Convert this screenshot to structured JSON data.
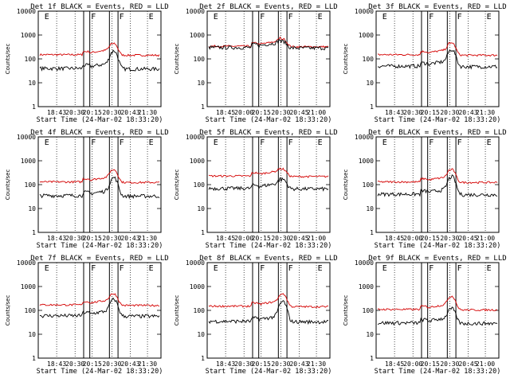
{
  "panel_titles": [
    "Det 1f BLACK = Events, RED = LLD",
    "Det 2f BLACK = Events, RED = LLD",
    "Det 3f BLACK = Events, RED = LLD",
    "Det 4f BLACK = Events, RED = LLD",
    "Det 5f BLACK = Events, RED = LLD",
    "Det 6f BLACK = Events, RED = LLD",
    "Det 7f BLACK = Events, RED = LLD",
    "Det 8f BLACK = Events, RED = LLD",
    "Det 9f BLACK = Events, RED = LLD"
  ],
  "xlabel": "Start Time (24-Mar-02 18:33:20)",
  "ylabel": "Counts/sec",
  "colors": {
    "events": "#000000",
    "lld": "#d40000"
  },
  "chart_data": [
    {
      "type": "line",
      "ylim": [
        1,
        10000
      ],
      "yscale": "log",
      "ytick_labels": [
        "1",
        "10",
        "100",
        "1000",
        "10000"
      ],
      "xtick_labels": [
        "18:45",
        "20:00",
        "20:15",
        "20:30",
        "20:45",
        "21:00"
      ],
      "xtick_labels_variants": {
        "A": [
          "18:43",
          "20:30",
          "20:15",
          "20:30",
          "20:43",
          "21:30"
        ],
        "B": [
          "18:45",
          "20:00",
          "20:15",
          "20:30",
          "20:45",
          "21:00"
        ]
      },
      "panels": [
        {
          "variant": "A",
          "events_base": 40,
          "lld_base": 150,
          "peak_events": 220,
          "peak_lld": 450,
          "markers": [
            "F",
            "F",
            "E"
          ]
        },
        {
          "variant": "B",
          "events_base": 300,
          "lld_base": 340,
          "peak_events": 550,
          "peak_lld": 700,
          "markers": [
            "F",
            "F",
            "E"
          ]
        },
        {
          "variant": "A",
          "events_base": 50,
          "lld_base": 150,
          "peak_events": 250,
          "peak_lld": 480,
          "markers": [
            "F",
            "F",
            "E"
          ]
        },
        {
          "variant": "A",
          "events_base": 35,
          "lld_base": 130,
          "peak_events": 200,
          "peak_lld": 430,
          "markers": [
            "F",
            "F",
            "E"
          ]
        },
        {
          "variant": "B",
          "events_base": 70,
          "lld_base": 230,
          "peak_events": 170,
          "peak_lld": 450,
          "markers": [
            "F",
            "F",
            "E"
          ]
        },
        {
          "variant": "B",
          "events_base": 40,
          "lld_base": 130,
          "peak_events": 220,
          "peak_lld": 440,
          "markers": [
            "F",
            "F",
            "E"
          ]
        },
        {
          "variant": "A",
          "events_base": 60,
          "lld_base": 170,
          "peak_events": 290,
          "peak_lld": 500,
          "markers": [
            "F",
            "F",
            "E"
          ]
        },
        {
          "variant": "A",
          "events_base": 35,
          "lld_base": 150,
          "peak_events": 240,
          "peak_lld": 500,
          "markers": [
            "F",
            "F",
            "E"
          ]
        },
        {
          "variant": "B",
          "events_base": 30,
          "lld_base": 110,
          "peak_events": 120,
          "peak_lld": 400,
          "markers": [
            "F",
            "F",
            "E"
          ]
        }
      ]
    }
  ]
}
